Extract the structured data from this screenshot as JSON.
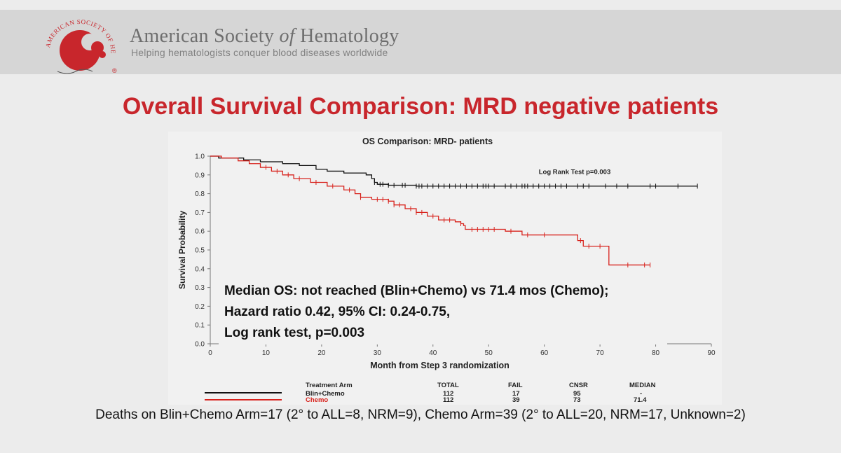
{
  "header": {
    "org_prefix": "American Society ",
    "org_of": "of",
    "org_suffix": " Hematology",
    "tagline": "Helping hematologists conquer blood diseases worldwide",
    "logo_ring_text": "AMERICAN SOCIETY OF HEMATOLOGY",
    "logo_registered": "®"
  },
  "slide_title": "Overall Survival Comparison:  MRD negative patients",
  "median_text": {
    "line1": "Median OS: not reached (Blin+Chemo) vs 71.4 mos (Chemo);",
    "line2": "Hazard ratio 0.42, 95% CI: 0.24-0.75,",
    "line3": "Log rank test, p=0.003"
  },
  "risk_table": {
    "headers": [
      "Treatment Arm",
      "TOTAL",
      "FAIL",
      "CNSR",
      "MEDIAN"
    ],
    "rows": [
      {
        "arm": "Blin+Chemo",
        "total": "112",
        "fail": "17",
        "cnsr": "95",
        "median": "-",
        "color": "#111111"
      },
      {
        "arm": "Chemo",
        "total": "112",
        "fail": "39",
        "cnsr": "73",
        "median": "71.4",
        "color": "#d8231d"
      }
    ]
  },
  "footer": "Deaths on Blin+Chemo Arm=17 (2° to ALL=8, NRM=9), Chemo Arm=39 (2° to ALL=20, NRM=17, Unknown=2)",
  "chart_data": {
    "type": "line",
    "subtype": "kaplan-meier step",
    "title": "OS Comparison: MRD- patients",
    "xlabel": "Month from Step 3 randomization",
    "ylabel": "Survival Probability",
    "xlim": [
      0,
      90
    ],
    "ylim": [
      0,
      1.0
    ],
    "xticks": [
      0,
      10,
      20,
      30,
      40,
      50,
      60,
      70,
      80,
      90
    ],
    "yticks": [
      0.0,
      0.1,
      0.2,
      0.3,
      0.4,
      0.5,
      0.6,
      0.7,
      0.8,
      0.9,
      1.0
    ],
    "ytick_labels": [
      "0.0",
      "0.1",
      "0.2",
      "0.3",
      "0.4",
      "0.5",
      "0.6",
      "0.7",
      "0.8",
      "0.9",
      "1.0"
    ],
    "grid": false,
    "annotation": "Log Rank Test p=0.003",
    "series": [
      {
        "name": "Blin+Chemo",
        "color": "#111111",
        "steps": [
          [
            0,
            1.0
          ],
          [
            1.5,
            0.99
          ],
          [
            6,
            0.98
          ],
          [
            9,
            0.97
          ],
          [
            13,
            0.96
          ],
          [
            16,
            0.95
          ],
          [
            19,
            0.93
          ],
          [
            21,
            0.92
          ],
          [
            24,
            0.91
          ],
          [
            28,
            0.9
          ],
          [
            29,
            0.88
          ],
          [
            29.5,
            0.86
          ],
          [
            30,
            0.85
          ],
          [
            32,
            0.845
          ],
          [
            37,
            0.84
          ],
          [
            87.5,
            0.84
          ]
        ],
        "censors": [
          29.5,
          30.5,
          31,
          32,
          33,
          34.5,
          35,
          37,
          37.5,
          38,
          39,
          40,
          41,
          42,
          43,
          44,
          45,
          46,
          47,
          48,
          49,
          49.5,
          50,
          51,
          53,
          54,
          55,
          56,
          56.5,
          57,
          58,
          59,
          60,
          61,
          62,
          63,
          64,
          66,
          67,
          68,
          71,
          73,
          75,
          79,
          80,
          84,
          87.5
        ]
      },
      {
        "name": "Chemo",
        "color": "#d8231d",
        "steps": [
          [
            0,
            1.0
          ],
          [
            2,
            0.99
          ],
          [
            5,
            0.975
          ],
          [
            7,
            0.96
          ],
          [
            9,
            0.94
          ],
          [
            11,
            0.92
          ],
          [
            13,
            0.9
          ],
          [
            15,
            0.88
          ],
          [
            18,
            0.86
          ],
          [
            21,
            0.84
          ],
          [
            24,
            0.82
          ],
          [
            26,
            0.8
          ],
          [
            27,
            0.78
          ],
          [
            29,
            0.77
          ],
          [
            32,
            0.76
          ],
          [
            33,
            0.74
          ],
          [
            35,
            0.72
          ],
          [
            37,
            0.7
          ],
          [
            39,
            0.68
          ],
          [
            41,
            0.66
          ],
          [
            44,
            0.65
          ],
          [
            45,
            0.64
          ],
          [
            45.5,
            0.63
          ],
          [
            45.8,
            0.61
          ],
          [
            53,
            0.6
          ],
          [
            56,
            0.58
          ],
          [
            65,
            0.58
          ],
          [
            66,
            0.55
          ],
          [
            67,
            0.52
          ],
          [
            71.5,
            0.52
          ],
          [
            71.6,
            0.42
          ],
          [
            79,
            0.42
          ]
        ],
        "censors": [
          10,
          12,
          14,
          16,
          19,
          22,
          25,
          27,
          30,
          31,
          32,
          33,
          34,
          36,
          37,
          38,
          40,
          42,
          43,
          45,
          47,
          48,
          49,
          50,
          51,
          54,
          57,
          60,
          66.5,
          68,
          70,
          75,
          78,
          79
        ]
      }
    ]
  }
}
